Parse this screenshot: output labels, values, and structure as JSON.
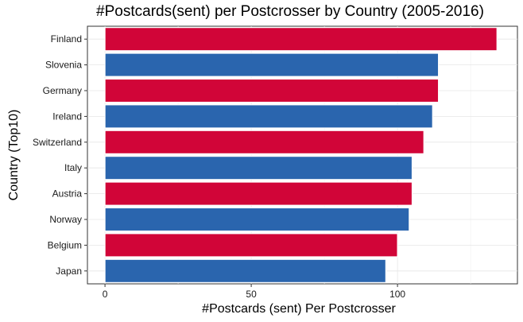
{
  "chart_data": {
    "type": "bar",
    "orientation": "horizontal",
    "title": "#Postcards(sent) per Postcrosser by Country (2005-2016)",
    "xlabel": "#Postcards (sent) Per Postcrosser",
    "ylabel": "Country (Top10)",
    "categories": [
      "Finland",
      "Slovenia",
      "Germany",
      "Ireland",
      "Switzerland",
      "Italy",
      "Austria",
      "Norway",
      "Belgium",
      "Japan"
    ],
    "values": [
      134,
      114,
      114,
      112,
      109,
      105,
      105,
      104,
      100,
      96
    ],
    "bar_colors": [
      "#d10538",
      "#2a65ae",
      "#d10538",
      "#2a65ae",
      "#d10538",
      "#2a65ae",
      "#d10538",
      "#2a65ae",
      "#d10538",
      "#2a65ae"
    ],
    "xlim": [
      -6,
      141
    ],
    "x_ticks": [
      0,
      50,
      100
    ],
    "x_tick_labels": [
      "0",
      "50",
      "100"
    ],
    "grid": true,
    "legend": "none"
  }
}
